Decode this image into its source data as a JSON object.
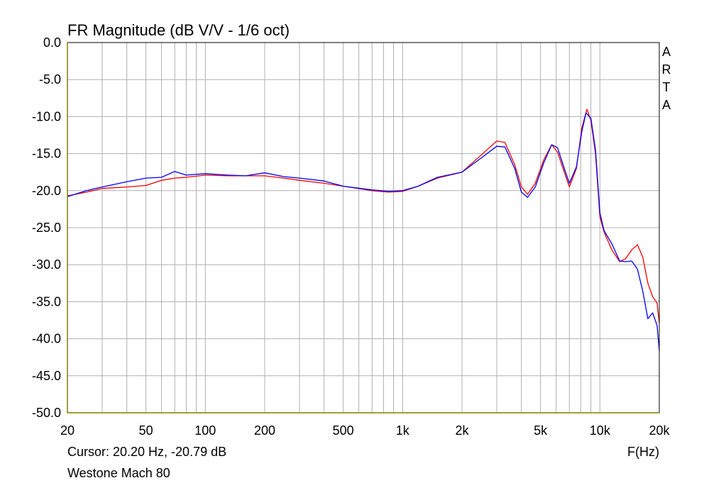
{
  "chart_data": {
    "type": "line",
    "title": "FR Magnitude (dB V/V - 1/6 oct)",
    "xlabel": "F(Hz)",
    "ylabel": "",
    "x_scale": "log",
    "xlim": [
      20,
      20000
    ],
    "ylim": [
      -50,
      0
    ],
    "grid": true,
    "x_ticks": [
      {
        "value": 20,
        "label": "20"
      },
      {
        "value": 50,
        "label": "50"
      },
      {
        "value": 100,
        "label": "100"
      },
      {
        "value": 200,
        "label": "200"
      },
      {
        "value": 500,
        "label": "500"
      },
      {
        "value": 1000,
        "label": "1k"
      },
      {
        "value": 2000,
        "label": "2k"
      },
      {
        "value": 5000,
        "label": "5k"
      },
      {
        "value": 10000,
        "label": "10k"
      },
      {
        "value": 20000,
        "label": "20k"
      }
    ],
    "y_ticks": [
      {
        "value": 0,
        "label": "0.0"
      },
      {
        "value": -5,
        "label": "-5.0"
      },
      {
        "value": -10,
        "label": "-10.0"
      },
      {
        "value": -15,
        "label": "-15.0"
      },
      {
        "value": -20,
        "label": "-20.0"
      },
      {
        "value": -25,
        "label": "-25.0"
      },
      {
        "value": -30,
        "label": "-30.0"
      },
      {
        "value": -35,
        "label": "-35.0"
      },
      {
        "value": -40,
        "label": "-40.0"
      },
      {
        "value": -45,
        "label": "-45.0"
      },
      {
        "value": -50,
        "label": "-50.0"
      }
    ],
    "series": [
      {
        "color": "#ff0000",
        "points": [
          [
            20,
            -20.7
          ],
          [
            25,
            -20.2
          ],
          [
            30,
            -19.7
          ],
          [
            40,
            -19.5
          ],
          [
            50,
            -19.3
          ],
          [
            60,
            -18.6
          ],
          [
            70,
            -18.3
          ],
          [
            80,
            -18.2
          ],
          [
            100,
            -17.9
          ],
          [
            130,
            -18.0
          ],
          [
            160,
            -18.0
          ],
          [
            200,
            -18.0
          ],
          [
            250,
            -18.3
          ],
          [
            300,
            -18.6
          ],
          [
            400,
            -19.0
          ],
          [
            500,
            -19.4
          ],
          [
            700,
            -20.0
          ],
          [
            850,
            -20.2
          ],
          [
            1000,
            -20.1
          ],
          [
            1200,
            -19.4
          ],
          [
            1500,
            -18.3
          ],
          [
            2000,
            -17.5
          ],
          [
            2500,
            -15.2
          ],
          [
            3000,
            -13.3
          ],
          [
            3300,
            -13.5
          ],
          [
            3700,
            -16.5
          ],
          [
            4000,
            -19.5
          ],
          [
            4300,
            -20.5
          ],
          [
            4700,
            -19.0
          ],
          [
            5200,
            -15.8
          ],
          [
            5700,
            -13.8
          ],
          [
            6100,
            -14.8
          ],
          [
            6600,
            -17.5
          ],
          [
            7000,
            -19.5
          ],
          [
            7600,
            -17.0
          ],
          [
            8100,
            -11.5
          ],
          [
            8600,
            -9.0
          ],
          [
            9000,
            -10.5
          ],
          [
            9500,
            -15.0
          ],
          [
            10000,
            -23.5
          ],
          [
            10500,
            -25.6
          ],
          [
            11500,
            -28.0
          ],
          [
            12600,
            -29.6
          ],
          [
            13500,
            -29.2
          ],
          [
            14500,
            -28.0
          ],
          [
            15500,
            -27.3
          ],
          [
            16500,
            -29.0
          ],
          [
            17500,
            -32.5
          ],
          [
            18500,
            -34.3
          ],
          [
            19500,
            -35.2
          ],
          [
            20000,
            -37.9
          ]
        ]
      },
      {
        "color": "#0000ff",
        "points": [
          [
            20,
            -20.8
          ],
          [
            25,
            -20.0
          ],
          [
            30,
            -19.5
          ],
          [
            40,
            -18.8
          ],
          [
            50,
            -18.3
          ],
          [
            60,
            -18.2
          ],
          [
            70,
            -17.4
          ],
          [
            80,
            -17.9
          ],
          [
            100,
            -17.7
          ],
          [
            130,
            -17.9
          ],
          [
            160,
            -18.0
          ],
          [
            200,
            -17.6
          ],
          [
            250,
            -18.1
          ],
          [
            300,
            -18.3
          ],
          [
            400,
            -18.7
          ],
          [
            500,
            -19.4
          ],
          [
            700,
            -19.9
          ],
          [
            850,
            -20.1
          ],
          [
            1000,
            -20.0
          ],
          [
            1200,
            -19.4
          ],
          [
            1500,
            -18.2
          ],
          [
            2000,
            -17.5
          ],
          [
            2500,
            -15.6
          ],
          [
            3000,
            -14.0
          ],
          [
            3300,
            -14.1
          ],
          [
            3700,
            -17.0
          ],
          [
            4000,
            -20.2
          ],
          [
            4300,
            -20.9
          ],
          [
            4700,
            -19.5
          ],
          [
            5200,
            -16.2
          ],
          [
            5700,
            -13.8
          ],
          [
            6100,
            -14.2
          ],
          [
            6600,
            -17.0
          ],
          [
            7000,
            -19.0
          ],
          [
            7600,
            -16.8
          ],
          [
            8100,
            -12.0
          ],
          [
            8500,
            -9.5
          ],
          [
            9000,
            -10.2
          ],
          [
            9500,
            -14.5
          ],
          [
            10000,
            -23.0
          ],
          [
            10500,
            -25.4
          ],
          [
            11500,
            -27.2
          ],
          [
            12600,
            -29.5
          ],
          [
            13500,
            -29.6
          ],
          [
            14500,
            -29.5
          ],
          [
            15500,
            -30.6
          ],
          [
            16500,
            -33.6
          ],
          [
            17500,
            -37.3
          ],
          [
            18500,
            -36.5
          ],
          [
            19500,
            -38.2
          ],
          [
            20000,
            -41.6
          ]
        ]
      }
    ]
  },
  "arta_label": "ARTA",
  "cursor_text": "Cursor: 20.20 Hz, -20.79 dB",
  "device_label": "Westone Mach 80",
  "colors": {
    "grid": "#b0b0b0",
    "frame": "#000000",
    "axis_accent": "#808000"
  }
}
